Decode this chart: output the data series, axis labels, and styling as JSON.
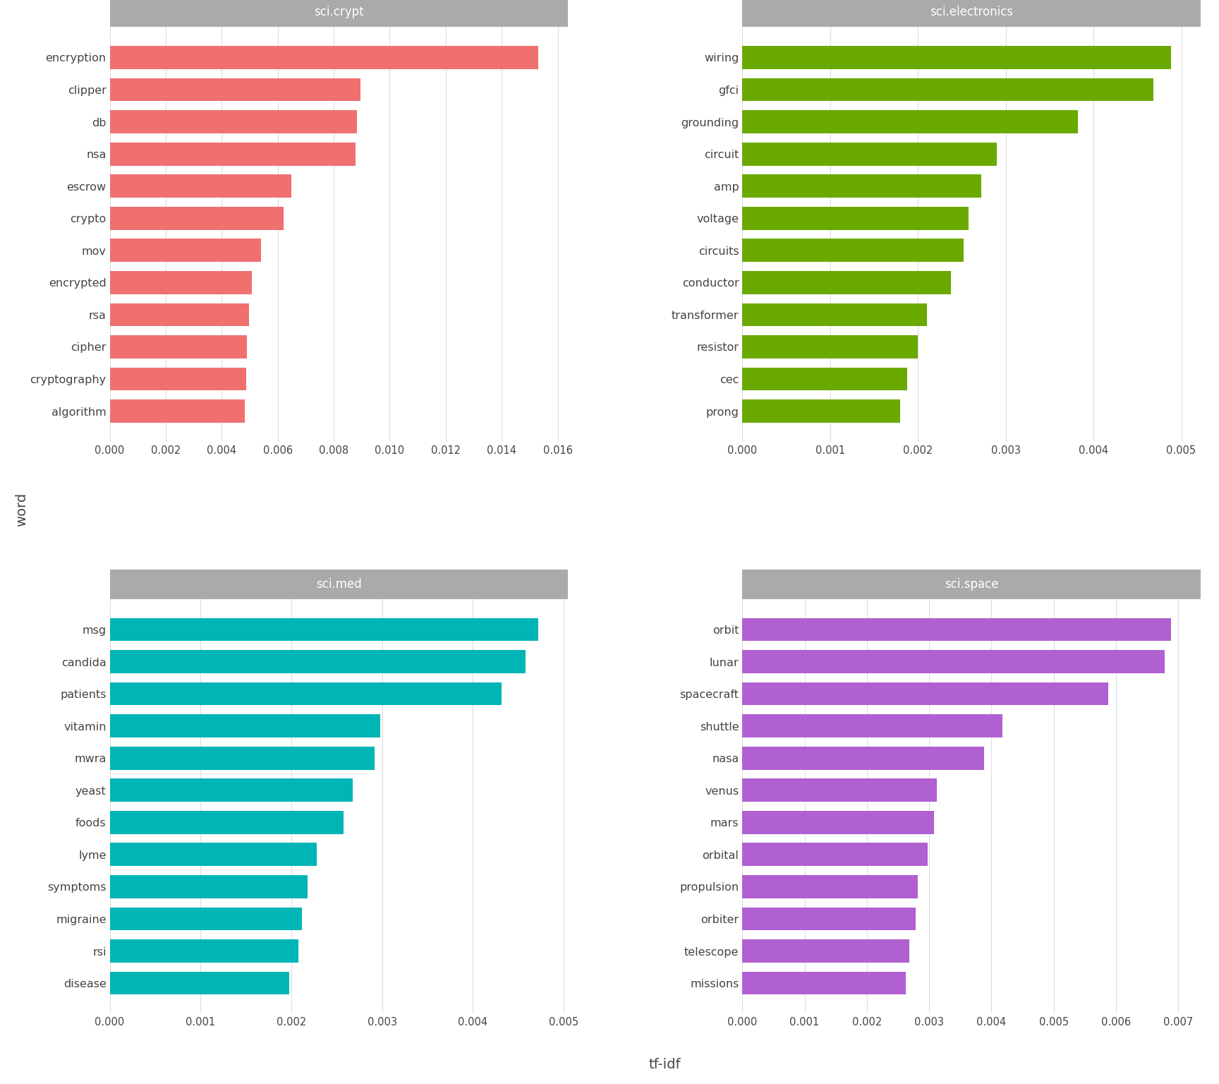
{
  "panels": [
    {
      "title": "sci.crypt",
      "color": "#f07070",
      "words": [
        "algorithm",
        "cryptography",
        "cipher",
        "rsa",
        "encrypted",
        "mov",
        "crypto",
        "escrow",
        "nsa",
        "db",
        "clipper",
        "encryption"
      ],
      "values": [
        0.00482,
        0.00487,
        0.0049,
        0.00497,
        0.00508,
        0.0054,
        0.0062,
        0.00648,
        0.00878,
        0.00882,
        0.00895,
        0.0153
      ]
    },
    {
      "title": "sci.electronics",
      "color": "#6aaa00",
      "words": [
        "prong",
        "cec",
        "resistor",
        "transformer",
        "conductor",
        "circuits",
        "voltage",
        "amp",
        "circuit",
        "grounding",
        "gfci",
        "wiring"
      ],
      "values": [
        0.0018,
        0.00188,
        0.002,
        0.0021,
        0.00238,
        0.00252,
        0.00258,
        0.00272,
        0.0029,
        0.00382,
        0.00468,
        0.00488
      ]
    },
    {
      "title": "sci.med",
      "color": "#00b5b5",
      "words": [
        "disease",
        "rsi",
        "migraine",
        "symptoms",
        "lyme",
        "foods",
        "yeast",
        "mwra",
        "vitamin",
        "patients",
        "candida",
        "msg"
      ],
      "values": [
        0.00198,
        0.00208,
        0.00212,
        0.00218,
        0.00228,
        0.00258,
        0.00268,
        0.00292,
        0.00298,
        0.00432,
        0.00458,
        0.00472
      ]
    },
    {
      "title": "sci.space",
      "color": "#b060d0",
      "words": [
        "missions",
        "telescope",
        "orbiter",
        "propulsion",
        "orbital",
        "mars",
        "venus",
        "nasa",
        "shuttle",
        "spacecraft",
        "lunar",
        "orbit"
      ],
      "values": [
        0.00262,
        0.00268,
        0.00278,
        0.00282,
        0.00298,
        0.00308,
        0.00312,
        0.00388,
        0.00418,
        0.00588,
        0.00678,
        0.00688
      ]
    }
  ],
  "xlabel": "tf-idf",
  "ylabel": "word",
  "background_color": "#ffffff",
  "grid_color": "#dddddd",
  "title_bg_color": "#aaaaaa",
  "title_text_color": "#ffffff",
  "bar_height": 0.72
}
